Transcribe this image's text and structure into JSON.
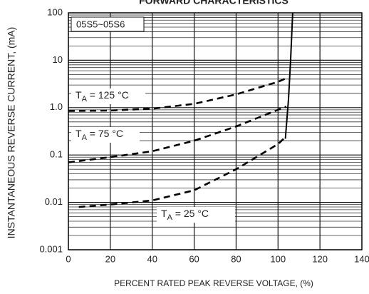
{
  "chart_data": {
    "type": "line",
    "title": "FORWARD CHARACTERISTICS",
    "xlabel": "PERCENT RATED PEAK REVERSE VOLTAGE, (%)",
    "ylabel": "INSTANTANEOUS REVERSE CURRENT, (mA)",
    "part_label": "05S5~05S6",
    "log_y": true,
    "grid": true,
    "color": "#000000",
    "xlim": [
      0,
      140
    ],
    "xticks": [
      0,
      20,
      40,
      60,
      80,
      100,
      120,
      140
    ],
    "ylim": [
      0.001,
      100
    ],
    "yticks": [
      0.001,
      0.01,
      0.1,
      {
        "value": 1,
        "label": "1.0"
      },
      10,
      100
    ],
    "annotations": [
      {
        "t": "T",
        "sub": "A",
        "rest": " = 125 °C"
      },
      {
        "t": "T",
        "sub": "A",
        "rest": " = 75 °C"
      },
      {
        "t": "T",
        "sub": "A",
        "rest": " = 25 °C"
      }
    ],
    "series": [
      {
        "dashed": true,
        "x": [
          0,
          20,
          40,
          60,
          80,
          100,
          104
        ],
        "values": [
          0.85,
          0.87,
          0.95,
          1.2,
          1.9,
          3.5,
          4.2
        ]
      },
      {
        "dashed": true,
        "x": [
          0,
          20,
          40,
          60,
          80,
          100,
          104
        ],
        "values": [
          0.07,
          0.09,
          0.12,
          0.2,
          0.4,
          0.9,
          1.05
        ]
      },
      {
        "dashed": true,
        "x": [
          5,
          20,
          40,
          60,
          80,
          100,
          104
        ],
        "values": [
          0.008,
          0.009,
          0.011,
          0.018,
          0.05,
          0.17,
          0.25
        ]
      },
      {
        "dashed": false,
        "x": [
          103.5,
          105,
          106,
          107
        ],
        "values": [
          0.22,
          1.5,
          10,
          100
        ]
      }
    ]
  }
}
